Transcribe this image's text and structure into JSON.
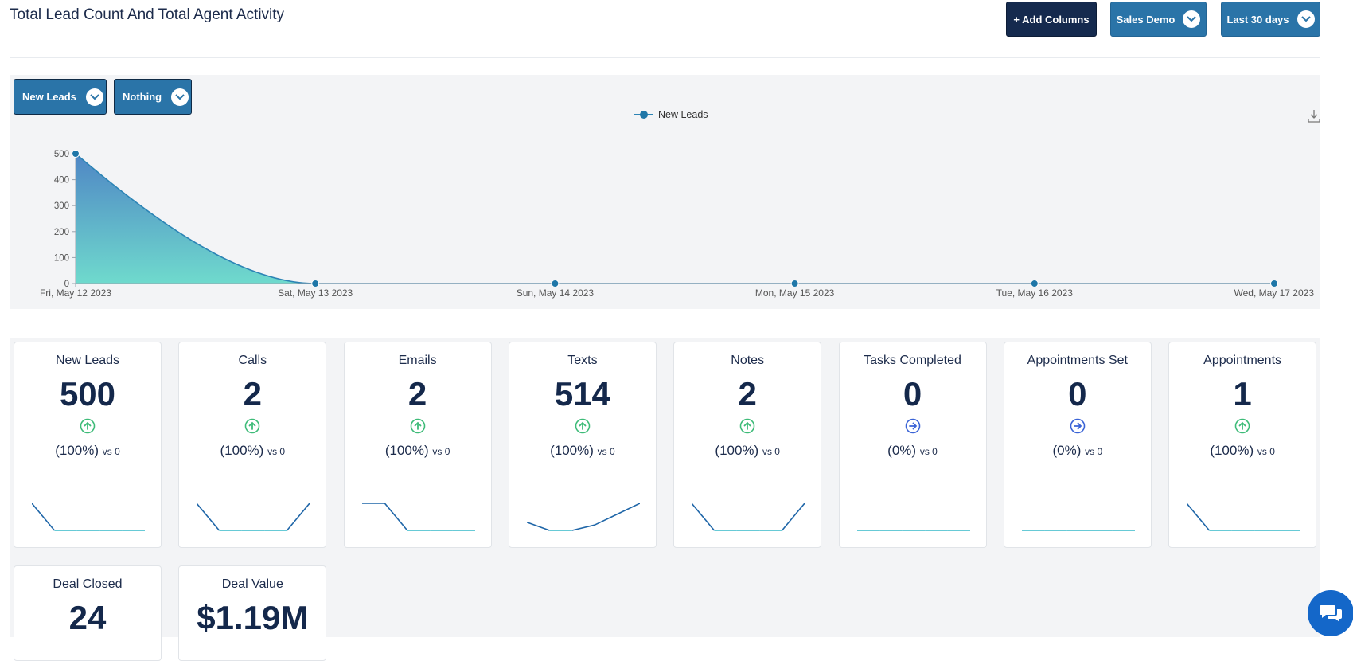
{
  "header": {
    "title": "Total Lead Count And Total Agent Activity",
    "add_columns_label": "+ Add Columns",
    "account_label": "Sales Demo",
    "range_label": "Last 30 days"
  },
  "filters": {
    "metric_label": "New Leads",
    "compare_label": "Nothing"
  },
  "chart_data": {
    "type": "area",
    "legend": "New Leads",
    "legend_position": "top-center",
    "categories": [
      "Fri, May 12 2023",
      "Sat, May 13 2023",
      "Sun, May 14 2023",
      "Mon, May 15 2023",
      "Tue, May 16 2023",
      "Wed, May 17 2023"
    ],
    "series": [
      {
        "name": "New Leads",
        "values": [
          500,
          0,
          0,
          0,
          0,
          0
        ]
      }
    ],
    "y_ticks": [
      "0",
      "100",
      "200",
      "300",
      "400",
      "500"
    ],
    "ylim": [
      0,
      500
    ],
    "grid": false,
    "colors": {
      "line": "#2c84b5",
      "fill_top": "#4f86c5",
      "fill_bottom": "#6fdacd",
      "point": "#1f77a8"
    }
  },
  "stats": [
    {
      "title": "New Leads",
      "value": "500",
      "pct": "(100%)",
      "vs": "vs 0",
      "trend": "up",
      "spark": [
        1,
        0,
        0,
        0,
        0,
        0
      ]
    },
    {
      "title": "Calls",
      "value": "2",
      "pct": "(100%)",
      "vs": "vs 0",
      "trend": "up",
      "spark": [
        1,
        0,
        0,
        0,
        0,
        1
      ]
    },
    {
      "title": "Emails",
      "value": "2",
      "pct": "(100%)",
      "vs": "vs 0",
      "trend": "up",
      "spark": [
        1,
        1,
        0,
        0,
        0,
        0
      ]
    },
    {
      "title": "Texts",
      "value": "514",
      "pct": "(100%)",
      "vs": "vs 0",
      "trend": "up",
      "spark": [
        0.3,
        0,
        0,
        0.2,
        0.6,
        1
      ]
    },
    {
      "title": "Notes",
      "value": "2",
      "pct": "(100%)",
      "vs": "vs 0",
      "trend": "up",
      "spark": [
        1,
        0,
        0,
        0,
        0,
        1
      ]
    },
    {
      "title": "Tasks Completed",
      "value": "0",
      "pct": "(0%)",
      "vs": "vs 0",
      "trend": "flat",
      "spark": [
        0,
        0,
        0,
        0,
        0,
        0
      ]
    },
    {
      "title": "Appointments Set",
      "value": "0",
      "pct": "(0%)",
      "vs": "vs 0",
      "trend": "flat",
      "spark": [
        0,
        0,
        0,
        0,
        0,
        0
      ]
    },
    {
      "title": "Appointments",
      "value": "1",
      "pct": "(100%)",
      "vs": "vs 0",
      "trend": "up",
      "spark": [
        1,
        0,
        0,
        0,
        0,
        0
      ]
    },
    {
      "title": "Deal Closed",
      "value": "24"
    },
    {
      "title": "Deal Value",
      "value": "$1.19M"
    }
  ],
  "colors": {
    "up": "#3dbb78",
    "flat": "#3a63d6",
    "spark_dark": "#1f66a8",
    "spark_light": "#35b8c8"
  },
  "icons": {
    "download": "download-icon",
    "chat": "chat-icon",
    "dropdown": "chevron-down-icon"
  }
}
